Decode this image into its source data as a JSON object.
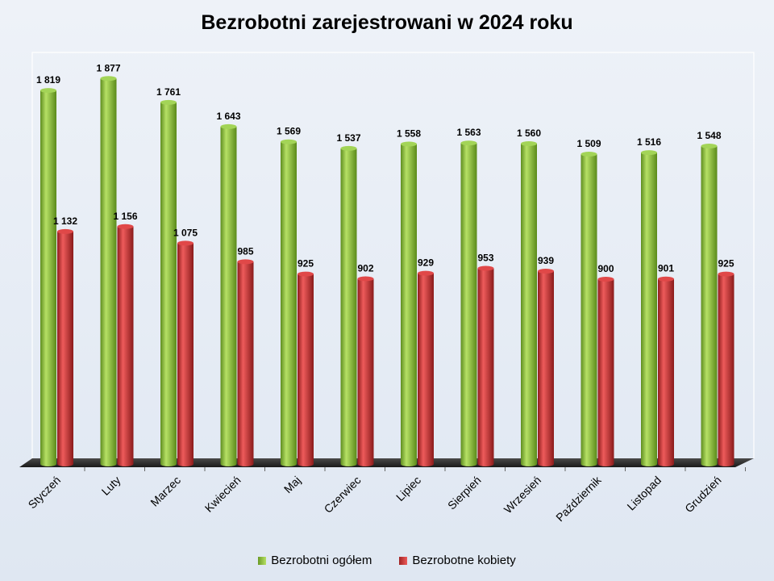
{
  "chart_data": {
    "type": "bar",
    "title": "Bezrobotni zarejestrowani w 2024 roku",
    "categories": [
      "Styczeń",
      "Luty",
      "Marzec",
      "Kwiecień",
      "Maj",
      "Czerwiec",
      "Lipiec",
      "Sierpień",
      "Wrzesień",
      "Październik",
      "Listopad",
      "Grudzień"
    ],
    "series": [
      {
        "name": "Bezrobotni ogółem",
        "color": "#8cc63e",
        "values": [
          1819,
          1877,
          1761,
          1643,
          1569,
          1537,
          1558,
          1563,
          1560,
          1509,
          1516,
          1548
        ],
        "labels": [
          "1 819",
          "1 877",
          "1 761",
          "1 643",
          "1 569",
          "1 537",
          "1 558",
          "1 563",
          "1 560",
          "1 509",
          "1 516",
          "1 548"
        ]
      },
      {
        "name": "Bezrobotne kobiety",
        "color": "#d63a3a",
        "values": [
          1132,
          1156,
          1075,
          985,
          925,
          902,
          929,
          953,
          939,
          900,
          901,
          925
        ],
        "labels": [
          "1 132",
          "1 156",
          "1 075",
          "985",
          "925",
          "902",
          "929",
          "953",
          "939",
          "900",
          "901",
          "925"
        ]
      }
    ],
    "ylim": [
      0,
      2000
    ],
    "legend_position": "bottom",
    "grid": false
  }
}
